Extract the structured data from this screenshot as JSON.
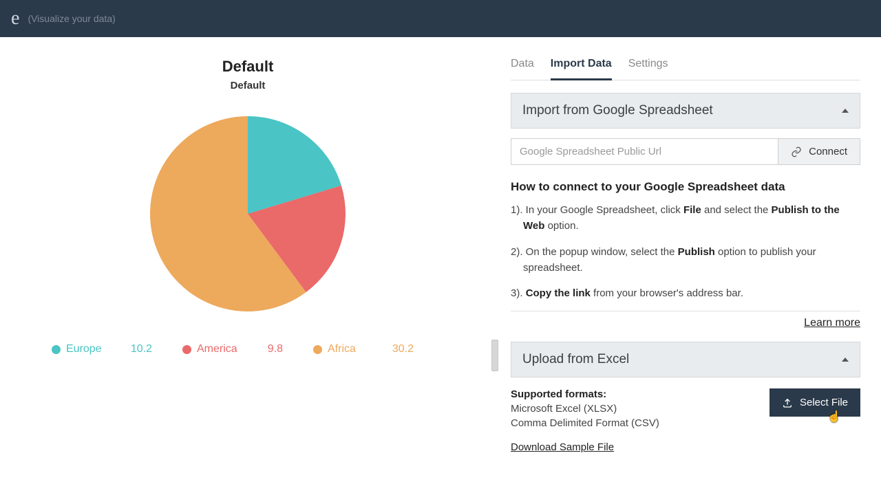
{
  "topbar": {
    "logo_fragment": "e",
    "tagline": "(Visualize your data)"
  },
  "chart": {
    "type": "pie",
    "title": "Default",
    "subtitle": "Default",
    "radius": 142,
    "background_color": "#ffffff",
    "series": [
      {
        "label": "Europe",
        "value": 10.2,
        "color": "#4ac4c4"
      },
      {
        "label": "America",
        "value": 9.8,
        "color": "#ea6969"
      },
      {
        "label": "Africa",
        "value": 30.2,
        "color": "#eda95c"
      }
    ],
    "legend_fontsize": 16,
    "title_fontsize": 22,
    "subtitle_fontsize": 15
  },
  "tabs": {
    "data": "Data",
    "import": "Import Data",
    "settings": "Settings",
    "active": "import"
  },
  "google_section": {
    "title": "Import from Google Spreadsheet",
    "placeholder": "Google Spreadsheet Public Url",
    "connect_label": "Connect",
    "howto_title": "How to connect to your Google Spreadsheet data",
    "steps": [
      {
        "prefix": "1). In your Google Spreadsheet, click ",
        "b1": "File",
        "mid": " and select the ",
        "b2": "Publish to the Web",
        "suffix": " option."
      },
      {
        "prefix": "2). On the popup window, select the ",
        "b1": "Publish",
        "mid": " option to publish your spreadsheet.",
        "b2": "",
        "suffix": ""
      },
      {
        "prefix": "3). ",
        "b1": "Copy the link",
        "mid": " from your browser's address bar.",
        "b2": "",
        "suffix": ""
      }
    ],
    "learn_more": "Learn more"
  },
  "excel_section": {
    "title": "Upload from Excel",
    "formats_title": "Supported formats:",
    "format1": "Microsoft Excel (XLSX)",
    "format2": "Comma Delimited Format (CSV)",
    "select_file": "Select File",
    "download_sample": "Download Sample File"
  },
  "colors": {
    "topbar_bg": "#2b3a4a",
    "accent": "#2b3a4a",
    "panel_bg": "#e9ecef",
    "border": "#d6d6d6"
  }
}
